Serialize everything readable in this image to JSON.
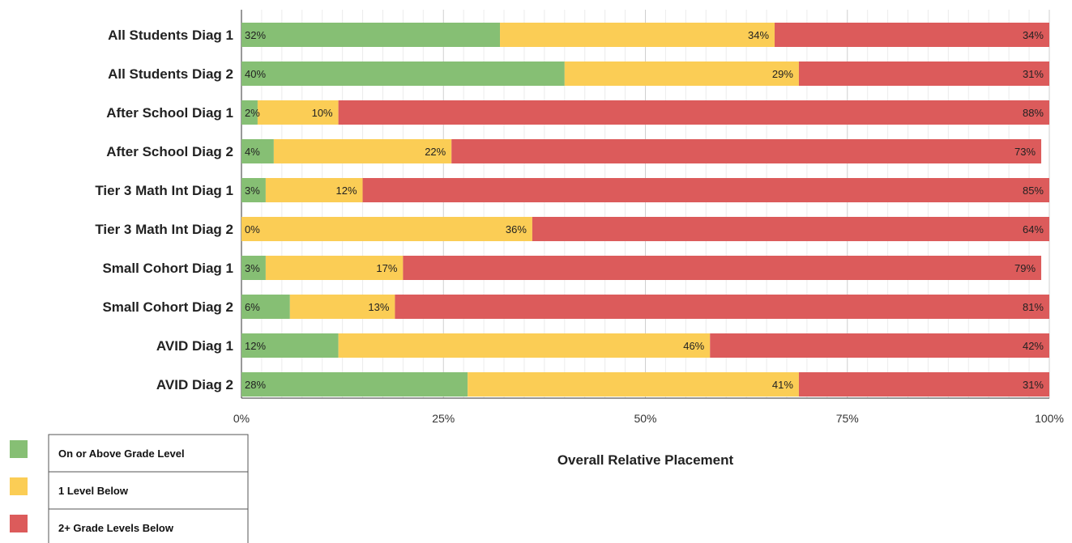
{
  "chart_data": {
    "type": "bar",
    "orientation": "horizontal",
    "stacked": true,
    "categories": [
      "All Students Diag 1",
      "All Students Diag 2",
      "After School Diag 1",
      "After School Diag 2",
      "Tier 3 Math Int Diag 1",
      "Tier 3 Math Int Diag 2",
      "Small Cohort Diag 1",
      "Small Cohort Diag 2",
      "AVID Diag 1",
      "AVID Diag 2"
    ],
    "series": [
      {
        "name": "On or Above Grade Level",
        "color": "#86bf74",
        "values": [
          32,
          40,
          2,
          4,
          3,
          0,
          3,
          6,
          12,
          28
        ]
      },
      {
        "name": "1 Level Below",
        "color": "#fbcd55",
        "values": [
          34,
          29,
          10,
          22,
          12,
          36,
          17,
          13,
          46,
          41
        ]
      },
      {
        "name": "2+ Grade Levels Below",
        "color": "#dc5b5b",
        "values": [
          34,
          31,
          88,
          73,
          85,
          64,
          79,
          81,
          42,
          31
        ]
      }
    ],
    "xlabel": "Overall Relative Placement",
    "xlim": [
      0,
      100
    ],
    "x_ticks": [
      "0%",
      "25%",
      "50%",
      "75%",
      "100%"
    ],
    "value_suffix": "%",
    "grid": true,
    "legend_position": "bottom-left"
  }
}
